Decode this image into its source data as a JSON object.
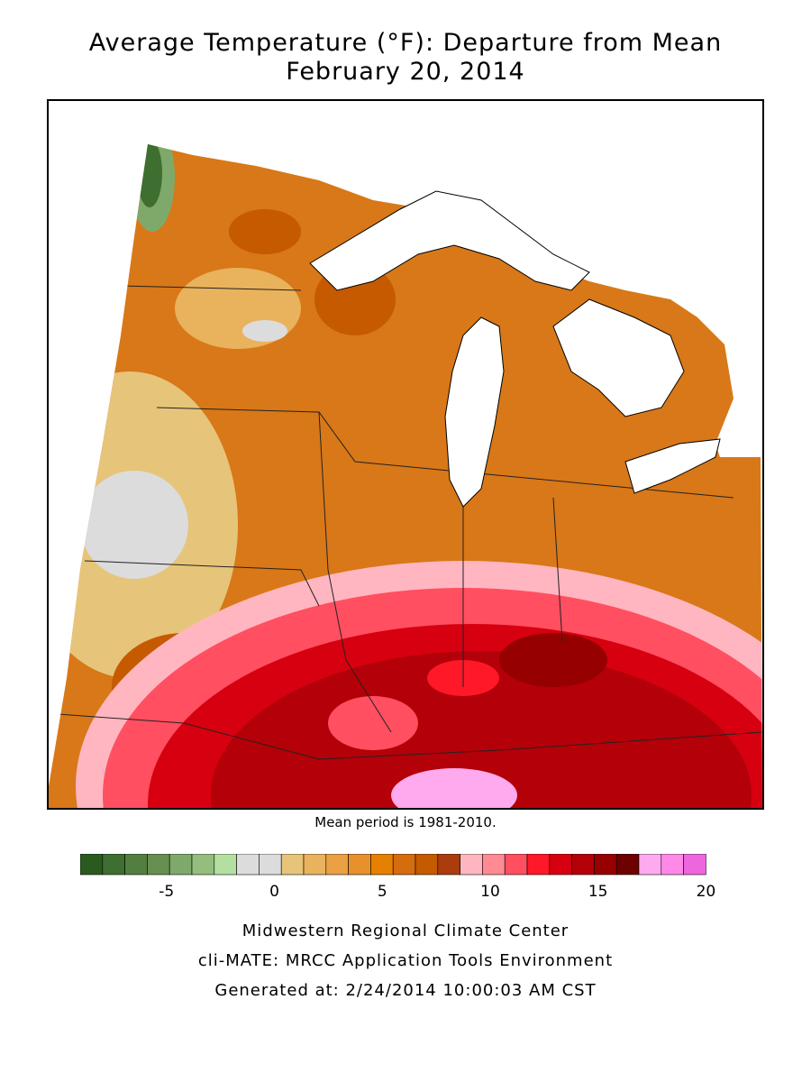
{
  "title": {
    "line1": "Average Temperature (°F): Departure from Mean",
    "line2": "February 20, 2014"
  },
  "mean_period_note": "Mean period is 1981-2010.",
  "legend": {
    "colors": [
      "#2b5a1f",
      "#3e6e30",
      "#527f40",
      "#668f50",
      "#7fa96b",
      "#93be7d",
      "#b3e0a0",
      "#dcdcdc",
      "#dcdcdc",
      "#e6c47a",
      "#e9b25c",
      "#eaa043",
      "#e8902c",
      "#e68000",
      "#d56c0e",
      "#c55a00",
      "#ab3c0e",
      "#ffb6c1",
      "#ff8a94",
      "#ff4f60",
      "#ff1828",
      "#d60010",
      "#b40008",
      "#960000",
      "#6e0000",
      "#ffaaee",
      "#ff88e8",
      "#ee66dd"
    ],
    "tick_labels": [
      "-5",
      "0",
      "5",
      "10",
      "15",
      "20"
    ],
    "tick_values": [
      -5,
      0,
      5,
      10,
      15,
      20
    ],
    "min": -9,
    "max": 20
  },
  "footer": {
    "line1": "Midwestern Regional Climate Center",
    "line2": "cli-MATE: MRCC Application Tools Environment",
    "line3": "Generated at: 2/24/2014 10:00:03 AM CST"
  },
  "map": {
    "land_color": "#d87818",
    "water_color": "#ffffff"
  }
}
